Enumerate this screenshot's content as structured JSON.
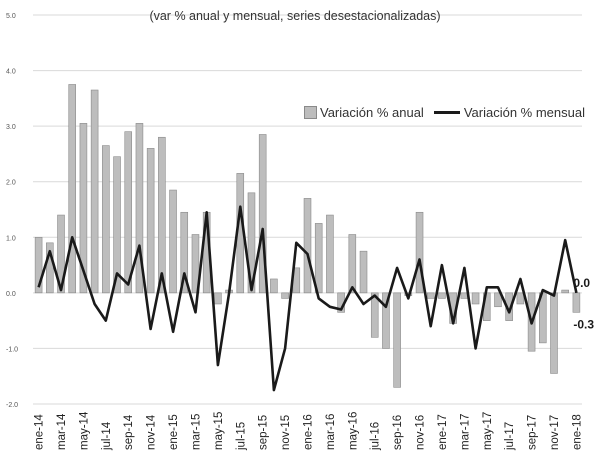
{
  "subtitle": "(var % anual y mensual, series desestacionalizadas)",
  "legend": {
    "bar_label": "Variación % anual",
    "line_label": "Variación % mensual"
  },
  "chart_data": {
    "type": "bar",
    "subtitle": "(var % anual y mensual, series desestacionalizadas)",
    "ylim": [
      -2.0,
      5.0
    ],
    "yticks": [
      "5.0",
      "4.0",
      "3.0",
      "2.0",
      "1.0",
      "0.0",
      "-1.0",
      "-2.0"
    ],
    "grid": true,
    "legend_position": "top-right",
    "categories": [
      "ene-14",
      "feb-14",
      "mar-14",
      "abr-14",
      "may-14",
      "jun-14",
      "jul-14",
      "ago-14",
      "sep-14",
      "oct-14",
      "nov-14",
      "dic-14",
      "ene-15",
      "feb-15",
      "mar-15",
      "abr-15",
      "may-15",
      "jun-15",
      "jul-15",
      "ago-15",
      "sep-15",
      "oct-15",
      "nov-15",
      "dic-15",
      "ene-16",
      "feb-16",
      "mar-16",
      "abr-16",
      "may-16",
      "jun-16",
      "jul-16",
      "ago-16",
      "sep-16",
      "oct-16",
      "nov-16",
      "dic-16",
      "ene-17",
      "feb-17",
      "mar-17",
      "abr-17",
      "may-17",
      "jun-17",
      "jul-17",
      "ago-17",
      "sep-17",
      "oct-17",
      "nov-17",
      "dic-17",
      "ene-18"
    ],
    "x_tick_labels": [
      "ene-14",
      "mar-14",
      "may-14",
      "jul-14",
      "sep-14",
      "nov-14",
      "ene-15",
      "mar-15",
      "may-15",
      "jul-15",
      "sep-15",
      "nov-15",
      "ene-16",
      "mar-16",
      "may-16",
      "jul-16",
      "sep-16",
      "nov-16",
      "ene-17",
      "mar-17",
      "may-17",
      "jul-17",
      "sep-17",
      "nov-17",
      "ene-18"
    ],
    "series": [
      {
        "name": "Variación % anual",
        "type": "bar",
        "color": "#bdbdbd",
        "values": [
          1.0,
          0.9,
          1.4,
          3.75,
          3.05,
          3.65,
          2.65,
          2.45,
          2.9,
          3.05,
          2.6,
          2.8,
          1.85,
          1.45,
          1.05,
          1.45,
          -0.2,
          0.05,
          2.15,
          1.8,
          2.85,
          0.25,
          -0.1,
          0.45,
          1.7,
          1.25,
          1.4,
          -0.35,
          1.05,
          0.75,
          -0.8,
          -1.0,
          -1.7,
          -0.05,
          1.45,
          -0.1,
          -0.1,
          -0.55,
          -0.1,
          -0.2,
          -0.5,
          -0.25,
          -0.5,
          -0.2,
          -1.05,
          -0.9,
          -1.45,
          0.05,
          -0.35
        ]
      },
      {
        "name": "Variación % mensual",
        "type": "line",
        "color": "#1a1a1a",
        "values": [
          0.1,
          0.75,
          0.05,
          1.0,
          0.4,
          -0.2,
          -0.5,
          0.35,
          0.15,
          0.85,
          -0.65,
          0.35,
          -0.7,
          0.35,
          -0.35,
          1.45,
          -1.3,
          0.0,
          1.55,
          0.05,
          1.15,
          -1.75,
          -1.0,
          0.9,
          0.7,
          -0.1,
          -0.25,
          -0.3,
          0.1,
          -0.2,
          -0.05,
          -0.25,
          0.45,
          -0.1,
          0.6,
          -0.6,
          0.5,
          -0.55,
          0.45,
          -1.0,
          0.1,
          0.1,
          -0.35,
          0.25,
          -0.55,
          0.05,
          -0.05,
          0.95,
          0.0
        ]
      }
    ],
    "annotations": [
      {
        "series": "Variación % mensual",
        "category": "ene-18",
        "text": "0.0"
      },
      {
        "series": "Variación % anual",
        "category": "ene-18",
        "text": "-0.3"
      }
    ]
  }
}
